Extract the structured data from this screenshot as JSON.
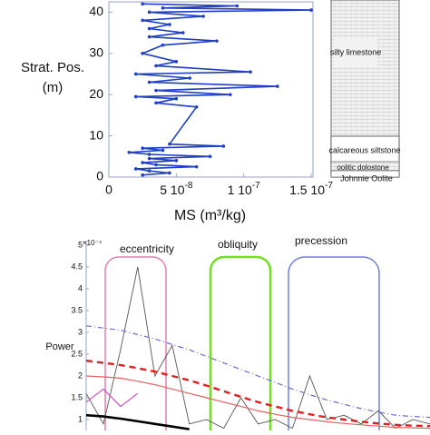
{
  "chart_data": [
    {
      "type": "line",
      "xlabel": "MS (m³/kg)",
      "ylabel": [
        "Strat. Pos.",
        "(m)"
      ],
      "xlim": [
        0,
        1.5e-07
      ],
      "xticks": [
        0,
        {
          "value": 5e-08,
          "label": "5 10",
          "exp": "-8"
        },
        {
          "value": 1e-07,
          "label": "1 10",
          "exp": "-7"
        },
        {
          "value": 1.5e-07,
          "label": "1.5 10",
          "exp": "-7"
        }
      ],
      "ylim": [
        0,
        42.5
      ],
      "yticks": [
        0,
        10,
        20,
        30,
        40
      ],
      "annotations": [
        "silty limestone",
        "calcareous siltstone",
        "oolitic dolostone",
        "Johnnie Oolite"
      ],
      "series": [
        {
          "color": "#1f3fc4",
          "y": [
            0.5,
            1,
            1.5,
            2,
            2.5,
            3,
            3.5,
            4,
            4.5,
            5,
            5.5,
            6,
            6.5,
            7,
            7.5,
            8,
            17,
            18,
            19,
            19.5,
            20,
            21,
            22,
            23,
            24,
            25,
            25.5,
            27,
            28,
            30,
            32,
            33,
            34,
            35,
            36,
            37,
            38,
            39,
            40,
            40.5,
            41,
            41.5,
            42
          ],
          "x": [
            2.5e-08,
            4.5e-08,
            3e-08,
            2e-08,
            6.5e-08,
            3.5e-08,
            2.5e-08,
            5e-08,
            3e-08,
            7.5e-08,
            3e-08,
            1.5e-08,
            4e-08,
            2.5e-08,
            8.5e-08,
            4.5e-08,
            6.5e-08,
            3.5e-08,
            5e-08,
            2e-08,
            9e-08,
            3.5e-08,
            1.25e-07,
            3e-08,
            6e-08,
            2e-08,
            1.05e-07,
            3.5e-08,
            5e-08,
            2.5e-08,
            4e-08,
            8e-08,
            3e-08,
            5.5e-08,
            3e-08,
            4.5e-08,
            2.5e-08,
            7e-08,
            3e-08,
            1.5e-07,
            4e-08,
            9.5e-08,
            2.5e-08
          ]
        }
      ]
    },
    {
      "type": "line",
      "ylabel": "Power",
      "y_exponent": "×10⁻⁴",
      "annotations": [
        "eccentricity",
        "obliquity",
        "precession"
      ],
      "ylim": [
        0.75,
        5
      ],
      "yticks": [
        1,
        1.5,
        2,
        2.5,
        3,
        3.5,
        4,
        4.5,
        5
      ],
      "x": [
        0,
        0.05,
        0.1,
        0.15,
        0.2,
        0.25,
        0.3,
        0.35,
        0.4,
        0.45,
        0.5,
        0.55,
        0.6,
        0.65,
        0.7,
        0.75,
        0.8,
        0.85,
        0.9,
        0.95,
        1
      ],
      "xlim": [
        0,
        1
      ],
      "series": [
        {
          "color": "#555555",
          "style": "thin",
          "values": [
            1.6,
            0.9,
            2.6,
            4.5,
            2.0,
            2.7,
            0.9,
            1.0,
            0.8,
            1.5,
            0.9,
            1.0,
            0.8,
            2.0,
            1.0,
            1.1,
            0.9,
            1.2,
            0.8,
            1.0,
            0.9
          ]
        },
        {
          "color": "#6a6ad8",
          "style": "dashdot",
          "values": [
            3.15,
            3.1,
            3.05,
            2.95,
            2.85,
            2.72,
            2.6,
            2.45,
            2.3,
            2.15,
            2.0,
            1.85,
            1.7,
            1.57,
            1.45,
            1.35,
            1.25,
            1.17,
            1.1,
            1.07,
            1.05
          ]
        },
        {
          "color": "#e02020",
          "style": "dashed",
          "values": [
            2.35,
            2.3,
            2.25,
            2.18,
            2.1,
            2.0,
            1.9,
            1.78,
            1.65,
            1.52,
            1.4,
            1.3,
            1.2,
            1.12,
            1.05,
            1.0,
            0.95,
            0.91,
            0.88,
            0.86,
            0.85
          ]
        },
        {
          "color": "#e86060",
          "style": "solid",
          "values": [
            2.0,
            1.98,
            1.95,
            1.88,
            1.8,
            1.7,
            1.6,
            1.5,
            1.4,
            1.3,
            1.2,
            1.12,
            1.05,
            1.0,
            0.95,
            0.91,
            0.88,
            0.85,
            0.82,
            0.81,
            0.8
          ]
        },
        {
          "color": "#000000",
          "style": "thick",
          "values": [
            1.1,
            1.07,
            1.02,
            0.96,
            0.9,
            0.84,
            0.78,
            null,
            null,
            null,
            null,
            null,
            null,
            null,
            null,
            null,
            null,
            null,
            null,
            null,
            null
          ]
        },
        {
          "color": "#d050c0",
          "style": "solid",
          "values": [
            1.4,
            1.7,
            1.3,
            1.6,
            null,
            null,
            null,
            null,
            null,
            null,
            null,
            null,
            null,
            null,
            null,
            null,
            null,
            null,
            null,
            null,
            null
          ]
        }
      ]
    }
  ]
}
